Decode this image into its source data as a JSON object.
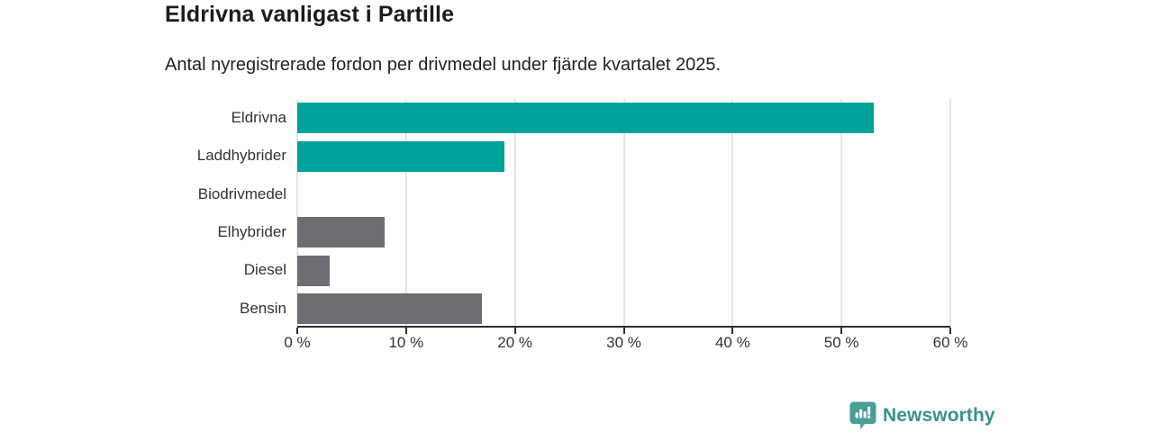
{
  "header": {
    "title": "Eldrivna vanligast i Partille",
    "subtitle": "Antal nyregistrerade fordon per drivmedel under fjärde kvartalet 2025."
  },
  "chart_data": {
    "type": "bar",
    "orientation": "horizontal",
    "title": "Eldrivna vanligast i Partille",
    "subtitle": "Antal nyregistrerade fordon per drivmedel under fjärde kvartalet 2025.",
    "categories": [
      "Eldrivna",
      "Laddhybrider",
      "Biodrivmedel",
      "Elhybrider",
      "Diesel",
      "Bensin"
    ],
    "values": [
      53,
      19,
      0,
      8,
      3,
      17
    ],
    "unit": "%",
    "bar_colors": [
      "#00A29B",
      "#00A29B",
      "#6D6D73",
      "#6D6D73",
      "#6D6D73",
      "#6D6D73"
    ],
    "xlim": [
      0,
      60
    ],
    "x_ticks": [
      0,
      10,
      20,
      30,
      40,
      50,
      60
    ],
    "x_tick_labels": [
      "0 %",
      "10 %",
      "20 %",
      "30 %",
      "40 %",
      "50 %",
      "60 %"
    ],
    "grid": true,
    "legend": false,
    "colors": {
      "highlight": "#00A29B",
      "neutral": "#6D6D73",
      "axis": "#2e2e2e",
      "gridline": "#e6e6e6"
    }
  },
  "branding": {
    "logo_text": "Newsworthy",
    "logo_icon": "bar-chart-bubble-icon",
    "accent_color": "#38928C",
    "icon_color": "#4A9D97"
  }
}
